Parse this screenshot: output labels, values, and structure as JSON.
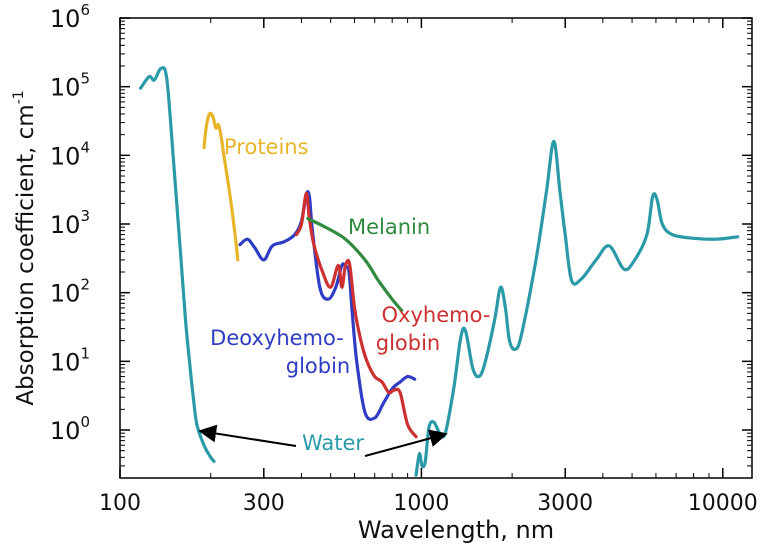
{
  "chart_data": {
    "type": "line",
    "title": "",
    "xlabel": "Wavelength, nm",
    "ylabel": "Absorption coefficient, cm",
    "ylabel_sup": "-1",
    "xscale": "log",
    "yscale": "log",
    "xlim": [
      100,
      12500
    ],
    "ylim": [
      0.2,
      1000000
    ],
    "x_ticks": [
      {
        "value": 100,
        "label": "100"
      },
      {
        "value": 300,
        "label": "300"
      },
      {
        "value": 1000,
        "label": "1000"
      },
      {
        "value": 3000,
        "label": "3000"
      },
      {
        "value": 10000,
        "label": "10000"
      }
    ],
    "y_ticks": [
      {
        "value": 1,
        "base": "10",
        "exp": "0"
      },
      {
        "value": 10,
        "base": "10",
        "exp": "1"
      },
      {
        "value": 100,
        "base": "10",
        "exp": "2"
      },
      {
        "value": 1000,
        "base": "10",
        "exp": "3"
      },
      {
        "value": 10000,
        "base": "10",
        "exp": "4"
      },
      {
        "value": 100000,
        "base": "10",
        "exp": "5"
      },
      {
        "value": 1000000,
        "base": "10",
        "exp": "6"
      }
    ],
    "series": [
      {
        "name": "Water",
        "color": "#2a9aa8",
        "label_text": "Water",
        "points": [
          [
            117,
            95000
          ],
          [
            125,
            140000
          ],
          [
            130,
            125000
          ],
          [
            137,
            185000
          ],
          [
            143,
            130000
          ],
          [
            150,
            10000
          ],
          [
            158,
            500
          ],
          [
            165,
            40
          ],
          [
            170,
            10
          ],
          [
            175,
            3
          ],
          [
            180,
            1.2
          ],
          [
            190,
            0.6
          ],
          [
            200,
            0.4
          ],
          [
            205,
            0.35
          ]
        ]
      },
      {
        "name": "Water",
        "color": "#2a9aa8",
        "points": [
          [
            960,
            0.22
          ],
          [
            985,
            0.45
          ],
          [
            1005,
            0.3
          ],
          [
            1030,
            0.35
          ],
          [
            1060,
            1.1
          ],
          [
            1100,
            1.3
          ],
          [
            1150,
            0.9
          ],
          [
            1200,
            0.9
          ],
          [
            1280,
            4
          ],
          [
            1350,
            22
          ],
          [
            1400,
            28
          ],
          [
            1480,
            8
          ],
          [
            1550,
            6
          ],
          [
            1620,
            9
          ],
          [
            1750,
            40
          ],
          [
            1830,
            120
          ],
          [
            1900,
            60
          ],
          [
            1960,
            20
          ],
          [
            2050,
            15
          ],
          [
            2150,
            25
          ],
          [
            2400,
            300
          ],
          [
            2600,
            3000
          ],
          [
            2750,
            16000
          ],
          [
            2880,
            3000
          ],
          [
            3000,
            700
          ],
          [
            3150,
            150
          ],
          [
            3400,
            160
          ],
          [
            3800,
            300
          ],
          [
            4200,
            480
          ],
          [
            4700,
            220
          ],
          [
            5100,
            300
          ],
          [
            5600,
            700
          ],
          [
            5850,
            2500
          ],
          [
            6050,
            2300
          ],
          [
            6300,
            1000
          ],
          [
            6800,
            700
          ],
          [
            8000,
            620
          ],
          [
            9500,
            600
          ],
          [
            11200,
            650
          ]
        ]
      },
      {
        "name": "Proteins",
        "color": "#e8b52a",
        "label_text": "Proteins",
        "points": [
          [
            190,
            13000
          ],
          [
            193,
            25000
          ],
          [
            198,
            40000
          ],
          [
            203,
            37000
          ],
          [
            208,
            25000
          ],
          [
            212,
            28000
          ],
          [
            216,
            20000
          ],
          [
            222,
            9000
          ],
          [
            232,
            2500
          ],
          [
            240,
            800
          ],
          [
            246,
            300
          ]
        ]
      },
      {
        "name": "Melanin",
        "color": "#2f8a3e",
        "label_text": "Melanin",
        "points": [
          [
            420,
            1200
          ],
          [
            480,
            900
          ],
          [
            560,
            600
          ],
          [
            650,
            300
          ],
          [
            720,
            150
          ],
          [
            800,
            80
          ],
          [
            860,
            55
          ]
        ]
      },
      {
        "name": "Oxyhemoglobin",
        "color": "#cc3030",
        "label_text": "Oxyhemo-\nglobin",
        "points": [
          [
            385,
            700
          ],
          [
            400,
            1000
          ],
          [
            415,
            2800
          ],
          [
            425,
            1200
          ],
          [
            440,
            500
          ],
          [
            470,
            200
          ],
          [
            500,
            120
          ],
          [
            530,
            250
          ],
          [
            545,
            120
          ],
          [
            560,
            250
          ],
          [
            578,
            260
          ],
          [
            600,
            60
          ],
          [
            630,
            20
          ],
          [
            660,
            10
          ],
          [
            700,
            6
          ],
          [
            740,
            5
          ],
          [
            780,
            3.5
          ],
          [
            810,
            3.8
          ],
          [
            850,
            3.5
          ],
          [
            900,
            1.2
          ],
          [
            960,
            0.8
          ]
        ]
      },
      {
        "name": "Deoxyhemoglobin",
        "color": "#2f3cc4",
        "label_text": "Deoxyhemo-\nglobin",
        "points": [
          [
            250,
            500
          ],
          [
            265,
            600
          ],
          [
            280,
            450
          ],
          [
            300,
            300
          ],
          [
            320,
            480
          ],
          [
            350,
            550
          ],
          [
            380,
            700
          ],
          [
            400,
            1100
          ],
          [
            415,
            2700
          ],
          [
            425,
            2500
          ],
          [
            435,
            800
          ],
          [
            460,
            120
          ],
          [
            490,
            80
          ],
          [
            520,
            120
          ],
          [
            545,
            250
          ],
          [
            560,
            240
          ],
          [
            575,
            200
          ],
          [
            590,
            50
          ],
          [
            610,
            10
          ],
          [
            650,
            1.8
          ],
          [
            700,
            1.5
          ],
          [
            750,
            2.5
          ],
          [
            800,
            4
          ],
          [
            850,
            5
          ],
          [
            900,
            6
          ],
          [
            950,
            5.5
          ]
        ]
      }
    ]
  }
}
